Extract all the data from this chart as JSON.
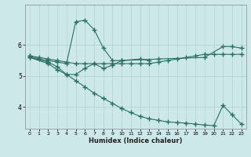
{
  "xlabel": "Humidex (Indice chaleur)",
  "bg_color": "#cce8e8",
  "grid_color": "#b0d0d0",
  "line_color": "#2a7060",
  "ylim": [
    3.3,
    7.3
  ],
  "xlim": [
    -0.5,
    23.5
  ],
  "yticks": [
    4,
    5,
    6
  ],
  "xticks": [
    0,
    1,
    2,
    3,
    4,
    5,
    6,
    7,
    8,
    9,
    10,
    11,
    12,
    13,
    14,
    15,
    16,
    17,
    18,
    19,
    20,
    21,
    22,
    23
  ],
  "line1_x": [
    0,
    1,
    2,
    3,
    4,
    5,
    6,
    7,
    8,
    9,
    10,
    14,
    19,
    21,
    22,
    23
  ],
  "line1_y": [
    5.65,
    5.55,
    5.5,
    5.45,
    5.4,
    6.75,
    6.8,
    6.5,
    5.9,
    5.5,
    5.5,
    5.55,
    5.6,
    5.95,
    5.95,
    5.9
  ],
  "line2_x": [
    0,
    1,
    2,
    3,
    4,
    5,
    6,
    7,
    8,
    9,
    10,
    11,
    12,
    13,
    14,
    15,
    16,
    17,
    18,
    19,
    20,
    21,
    22,
    23
  ],
  "line2_y": [
    5.65,
    5.6,
    5.55,
    5.5,
    5.45,
    5.4,
    5.4,
    5.4,
    5.4,
    5.4,
    5.4,
    5.4,
    5.4,
    5.4,
    5.45,
    5.5,
    5.55,
    5.6,
    5.65,
    5.7,
    5.7,
    5.7,
    5.7,
    5.7
  ],
  "line3_x": [
    0,
    2,
    3,
    4,
    5,
    6,
    7,
    8,
    9,
    10,
    12,
    13
  ],
  "line3_y": [
    5.6,
    5.45,
    5.3,
    5.05,
    5.05,
    5.25,
    5.4,
    5.25,
    5.35,
    5.5,
    5.55,
    5.5
  ],
  "line4_x": [
    0,
    2,
    3,
    4,
    5,
    6,
    7,
    8,
    9,
    10,
    11,
    12,
    13,
    14,
    15,
    16,
    17,
    18,
    19,
    20,
    21,
    22,
    23
  ],
  "line4_y": [
    5.6,
    5.4,
    5.2,
    5.05,
    4.85,
    4.65,
    4.45,
    4.28,
    4.12,
    3.95,
    3.82,
    3.7,
    3.62,
    3.57,
    3.52,
    3.5,
    3.48,
    3.45,
    3.42,
    3.4,
    4.05,
    3.75,
    3.45
  ]
}
